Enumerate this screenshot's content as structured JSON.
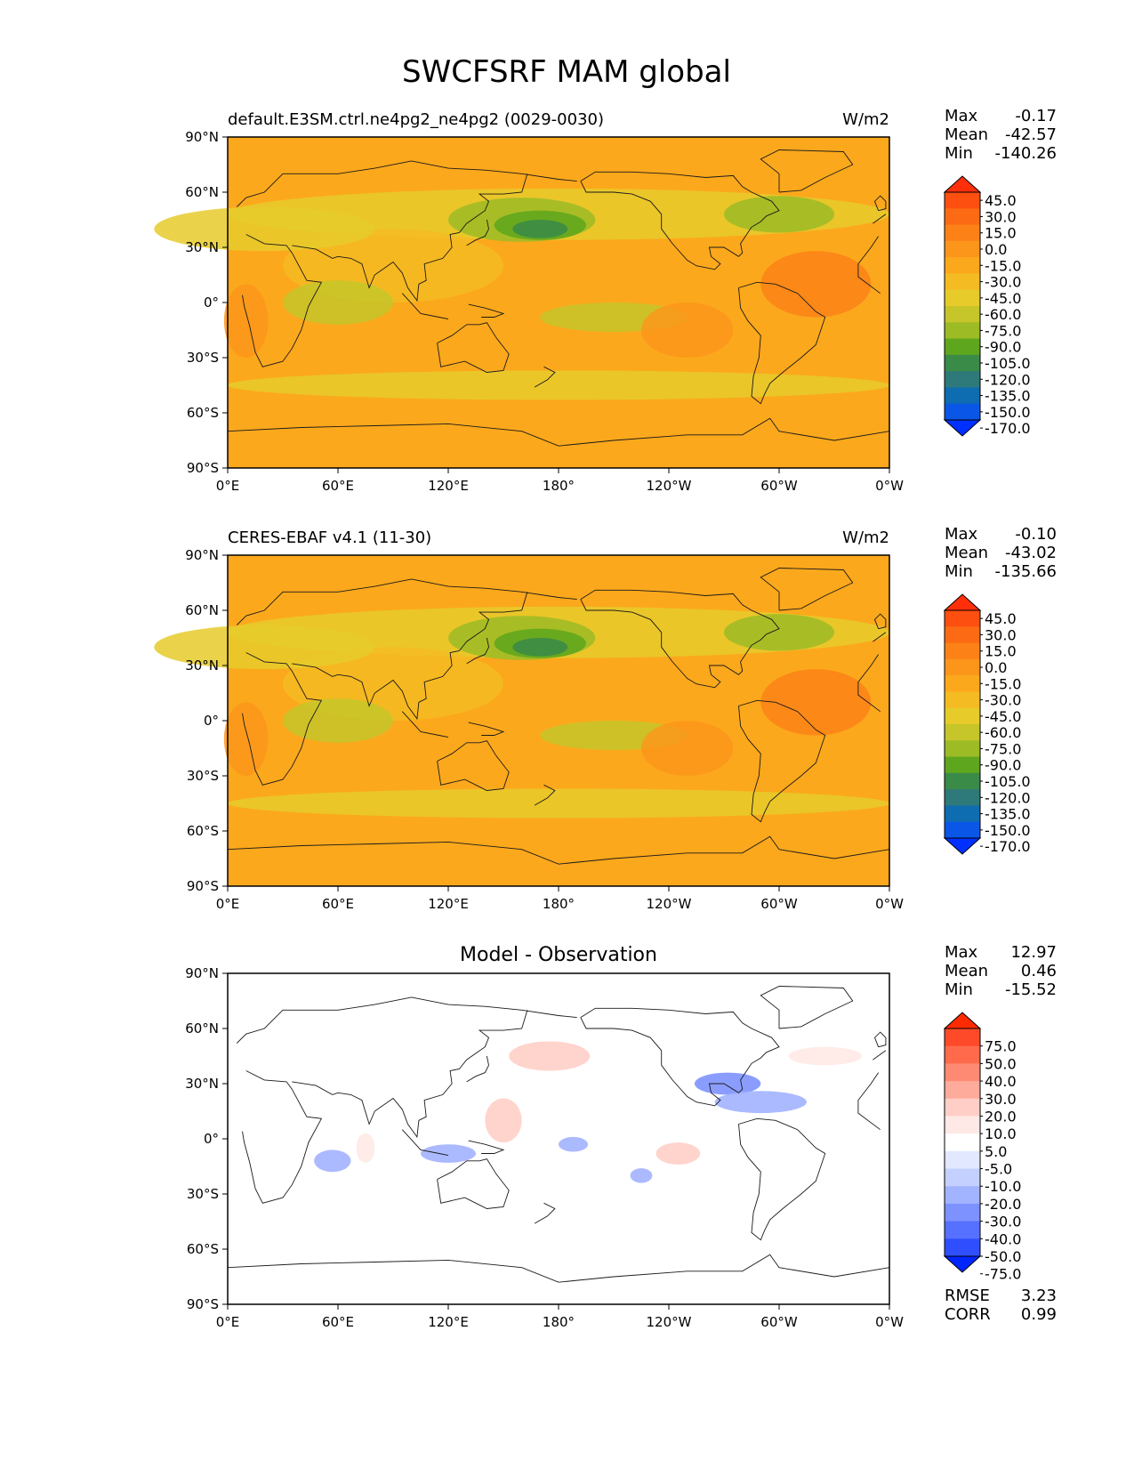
{
  "figure": {
    "title": "SWCFSRF MAM global"
  },
  "x_ticks": [
    "0°E",
    "60°E",
    "120°E",
    "180°",
    "120°W",
    "60°W",
    "0°W"
  ],
  "y_ticks": [
    "90°N",
    "60°N",
    "30°N",
    "0°",
    "30°S",
    "60°S",
    "90°S"
  ],
  "colors": {
    "field_bg": "#fca81c",
    "diff_bg": "#ffffff",
    "coast": "#1a1a1a"
  },
  "chart_data": [
    {
      "type": "heatmap",
      "title": "default.E3SM.ctrl.ne4pg2_ne4pg2 (0029-0030)",
      "units": "W/m2",
      "stats": [
        {
          "label": "Max",
          "value": "-0.17"
        },
        {
          "label": "Mean",
          "value": "-42.57"
        },
        {
          "label": "Min",
          "value": "-140.26"
        }
      ],
      "colorbar": {
        "labels": [
          "45.0",
          "30.0",
          "15.0",
          "0.0",
          "-15.0",
          "-30.0",
          "-45.0",
          "-60.0",
          "-75.0",
          "-90.0",
          "-105.0",
          "-120.0",
          "-135.0",
          "-150.0",
          "-170.0"
        ],
        "colors": [
          "#ff2f0a",
          "#fd4f10",
          "#fc6a14",
          "#fc8217",
          "#fc961b",
          "#fca81c",
          "#f4bb22",
          "#e6cb2b",
          "#c6c529",
          "#9cbb25",
          "#5ea61d",
          "#3a8a48",
          "#2e7a7a",
          "#0e6cb0",
          "#0a56e6",
          "#0030ff"
        ]
      },
      "x_range": [
        0,
        360
      ],
      "y_range": [
        -90,
        90
      ]
    },
    {
      "type": "heatmap",
      "title": "CERES-EBAF v4.1 (11-30)",
      "units": "W/m2",
      "stats": [
        {
          "label": "Max",
          "value": "-0.10"
        },
        {
          "label": "Mean",
          "value": "-43.02"
        },
        {
          "label": "Min",
          "value": "-135.66"
        }
      ],
      "colorbar": {
        "labels": [
          "45.0",
          "30.0",
          "15.0",
          "0.0",
          "-15.0",
          "-30.0",
          "-45.0",
          "-60.0",
          "-75.0",
          "-90.0",
          "-105.0",
          "-120.0",
          "-135.0",
          "-150.0",
          "-170.0"
        ],
        "colors": [
          "#ff2f0a",
          "#fd4f10",
          "#fc6a14",
          "#fc8217",
          "#fc961b",
          "#fca81c",
          "#f4bb22",
          "#e6cb2b",
          "#c6c529",
          "#9cbb25",
          "#5ea61d",
          "#3a8a48",
          "#2e7a7a",
          "#0e6cb0",
          "#0a56e6",
          "#0030ff"
        ]
      },
      "x_range": [
        0,
        360
      ],
      "y_range": [
        -90,
        90
      ]
    },
    {
      "type": "heatmap",
      "title": "Model - Observation",
      "units": "",
      "stats": [
        {
          "label": "Max",
          "value": "12.97"
        },
        {
          "label": "Mean",
          "value": "0.46"
        },
        {
          "label": "Min",
          "value": "-15.52"
        }
      ],
      "metrics": [
        {
          "label": "RMSE",
          "value": "3.23"
        },
        {
          "label": "CORR",
          "value": "0.99"
        }
      ],
      "colorbar": {
        "labels": [
          "75.0",
          "50.0",
          "40.0",
          "30.0",
          "20.0",
          "10.0",
          "5.0",
          "-5.0",
          "-10.0",
          "-20.0",
          "-30.0",
          "-40.0",
          "-50.0",
          "-75.0"
        ],
        "colors": [
          "#ff2a00",
          "#ff4a2a",
          "#ff6a4d",
          "#ff8a73",
          "#ffab9c",
          "#ffcfc7",
          "#ffe9e6",
          "#ffffff",
          "#e2e8ff",
          "#c4d0ff",
          "#a2b3ff",
          "#7d92ff",
          "#5670ff",
          "#2f4fff",
          "#0026ff"
        ]
      },
      "x_range": [
        0,
        360
      ],
      "y_range": [
        -90,
        90
      ]
    }
  ]
}
